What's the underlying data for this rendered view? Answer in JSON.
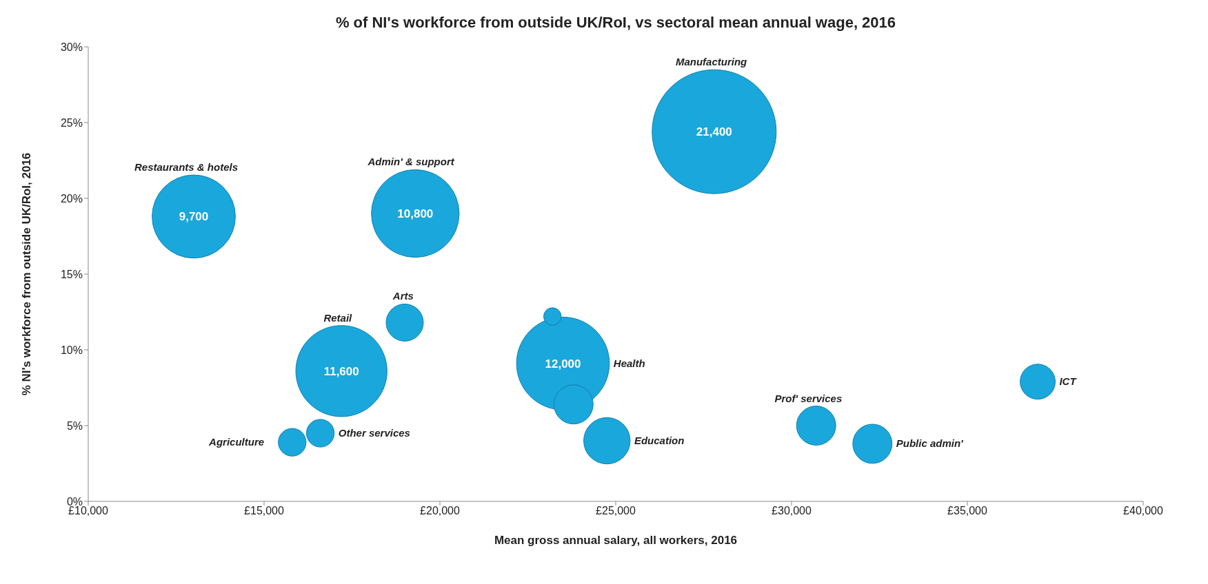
{
  "chart_data": {
    "type": "bubble",
    "title": "% of NI's workforce from outside UK/RoI, vs sectoral mean annual wage, 2016",
    "xlabel": "Mean gross annual salary, all workers, 2016",
    "ylabel": "% NI's workforce from outside UK/RoI, 2016",
    "xlim": [
      10000,
      40000
    ],
    "xticks": [
      {
        "value": 10000,
        "label": "£10,000"
      },
      {
        "value": 15000,
        "label": "£15,000"
      },
      {
        "value": 20000,
        "label": "£20,000"
      },
      {
        "value": 25000,
        "label": "£25,000"
      },
      {
        "value": 30000,
        "label": "£30,000"
      },
      {
        "value": 35000,
        "label": "£35,000"
      },
      {
        "value": 40000,
        "label": "£40,000"
      }
    ],
    "ylim": [
      0,
      30
    ],
    "yticks": [
      {
        "value": 0,
        "label": "0%"
      },
      {
        "value": 5,
        "label": "5%"
      },
      {
        "value": 10,
        "label": "10%"
      },
      {
        "value": 15,
        "label": "15%"
      },
      {
        "value": 20,
        "label": "20%"
      },
      {
        "value": 25,
        "label": "25%"
      },
      {
        "value": 30,
        "label": "30%"
      }
    ],
    "series": [
      {
        "name": "Manufacturing",
        "color": "#1aa7dc",
        "x": [
          27800
        ],
        "values": [
          24.4
        ],
        "sizes": [
          1
        ]
      },
      {
        "name": "Restaurants & hotels",
        "color": "#1aa7dc",
        "x": [
          13000
        ],
        "values": [
          18.8
        ],
        "sizes": [
          0.45
        ]
      },
      {
        "name": "Admin' & support",
        "color": "#1aa7dc",
        "x": [
          19300
        ],
        "values": [
          19.0
        ],
        "sizes": [
          0.5
        ]
      },
      {
        "name": "Health",
        "color": "#1aa7dc",
        "x": [
          23500
        ],
        "values": [
          9.1
        ],
        "sizes": [
          0.56
        ]
      },
      {
        "name": "Retail",
        "color": "#1aa7dc",
        "x": [
          17200
        ],
        "values": [
          8.6
        ],
        "sizes": [
          0.54
        ]
      },
      {
        "name": "Arts",
        "color": "#1aa7dc",
        "x": [
          19000
        ],
        "values": [
          11.8
        ],
        "sizes": [
          0.09
        ]
      },
      {
        "color": "#1aa7dc",
        "x": [
          23200
        ],
        "values": [
          12.2
        ],
        "sizes": [
          0.02
        ]
      },
      {
        "color": "#1aa7dc",
        "x": [
          23800
        ],
        "values": [
          6.4
        ],
        "sizes": [
          0.1
        ]
      },
      {
        "name": "Education",
        "color": "#1aa7dc",
        "x": [
          24750
        ],
        "values": [
          4.0
        ],
        "sizes": [
          0.14
        ]
      },
      {
        "name": "Agriculture",
        "color": "#1aa7dc",
        "x": [
          15800
        ],
        "values": [
          3.9
        ],
        "sizes": [
          0.05
        ]
      },
      {
        "name": "Other services",
        "color": "#1aa7dc",
        "x": [
          16600
        ],
        "values": [
          4.5
        ],
        "sizes": [
          0.05
        ]
      },
      {
        "name": "Prof' services",
        "color": "#1aa7dc",
        "x": [
          30700
        ],
        "values": [
          5.0
        ],
        "sizes": [
          0.1
        ]
      },
      {
        "name": "Public admin'",
        "color": "#1aa7dc",
        "x": [
          32300
        ],
        "values": [
          3.8
        ],
        "sizes": [
          0.1
        ]
      },
      {
        "name": "ICT",
        "color": "#1aa7dc",
        "x": [
          37000
        ],
        "values": [
          7.9
        ],
        "sizes": [
          0.08
        ]
      }
    ],
    "annotations": [
      {
        "text": "21,400",
        "x": 27800,
        "y": 24.4
      },
      {
        "text": "9,700",
        "x": 13000,
        "y": 18.8
      },
      {
        "text": "10,800",
        "x": 19300,
        "y": 19.0
      },
      {
        "text": "12,000",
        "x": 23500,
        "y": 9.1
      },
      {
        "text": "11,600",
        "x": 17200,
        "y": 8.6
      }
    ]
  }
}
